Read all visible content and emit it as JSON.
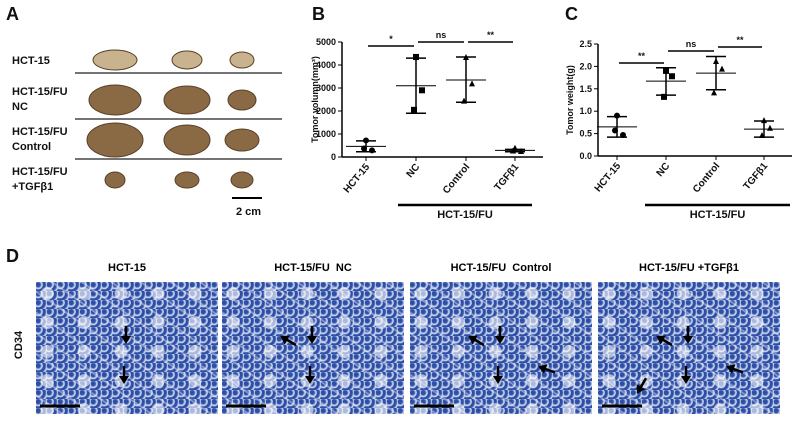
{
  "panels": {
    "a": "A",
    "b": "B",
    "c": "C",
    "d": "D"
  },
  "panel_a": {
    "rows": [
      [
        "HCT-15",
        ""
      ],
      [
        "HCT-15/FU",
        "NC"
      ],
      [
        "HCT-15/FU",
        "Control"
      ],
      [
        "HCT-15/FU",
        "+TGFβ1"
      ]
    ],
    "scale_bar": "2 cm"
  },
  "panel_d": {
    "titles": [
      "HCT-15",
      "HCT-15/FU  NC",
      "HCT-15/FU  Control",
      "HCT-15/FU +TGFβ1"
    ],
    "row_label": "CD34"
  },
  "chart_data": [
    {
      "type": "scatter",
      "panel": "B",
      "ylabel": "Tomor volumn(mm³)",
      "ylim": [
        0,
        5000
      ],
      "yticks": [
        "0",
        "1000",
        "2000",
        "3000",
        "4000",
        "5000"
      ],
      "categories": [
        "HCT-15",
        "NC",
        "Control",
        "TGFβ1"
      ],
      "group_label": "HCT-15/FU",
      "points": [
        [
          720,
          290,
          370
        ],
        [
          4350,
          2900,
          2050
        ],
        [
          4350,
          3200,
          2450
        ],
        [
          400,
          260,
          280
        ]
      ],
      "mean": [
        460,
        3100,
        3350,
        290
      ],
      "err": [
        [
          230,
          700
        ],
        [
          1900,
          4300
        ],
        [
          2380,
          4350
        ],
        [
          230,
          330
        ]
      ],
      "significance": [
        {
          "from": 0,
          "to": 1,
          "label": "*"
        },
        {
          "from": 1,
          "to": 2,
          "label": "ns"
        },
        {
          "from": 2,
          "to": 3,
          "label": "**"
        }
      ]
    },
    {
      "type": "scatter",
      "panel": "C",
      "ylabel": "Tomor weight(g)",
      "ylim": [
        0,
        2.5
      ],
      "yticks": [
        "0.0",
        "0.5",
        "1.0",
        "1.5",
        "2.0",
        "2.5"
      ],
      "categories": [
        "HCT-15",
        "NC",
        "Control",
        "TGFβ1"
      ],
      "group_label": "HCT-15/FU",
      "points": [
        [
          0.9,
          0.47,
          0.57
        ],
        [
          1.9,
          1.78,
          1.32
        ],
        [
          2.12,
          1.95,
          1.42
        ],
        [
          0.8,
          0.63,
          0.47
        ]
      ],
      "mean": [
        0.65,
        1.67,
        1.85,
        0.6
      ],
      "err": [
        [
          0.42,
          0.88
        ],
        [
          1.36,
          1.97
        ],
        [
          1.48,
          2.22
        ],
        [
          0.42,
          0.78
        ]
      ],
      "significance": [
        {
          "from": 0,
          "to": 1,
          "label": "**"
        },
        {
          "from": 1,
          "to": 2,
          "label": "ns"
        },
        {
          "from": 2,
          "to": 3,
          "label": "**"
        }
      ]
    }
  ]
}
